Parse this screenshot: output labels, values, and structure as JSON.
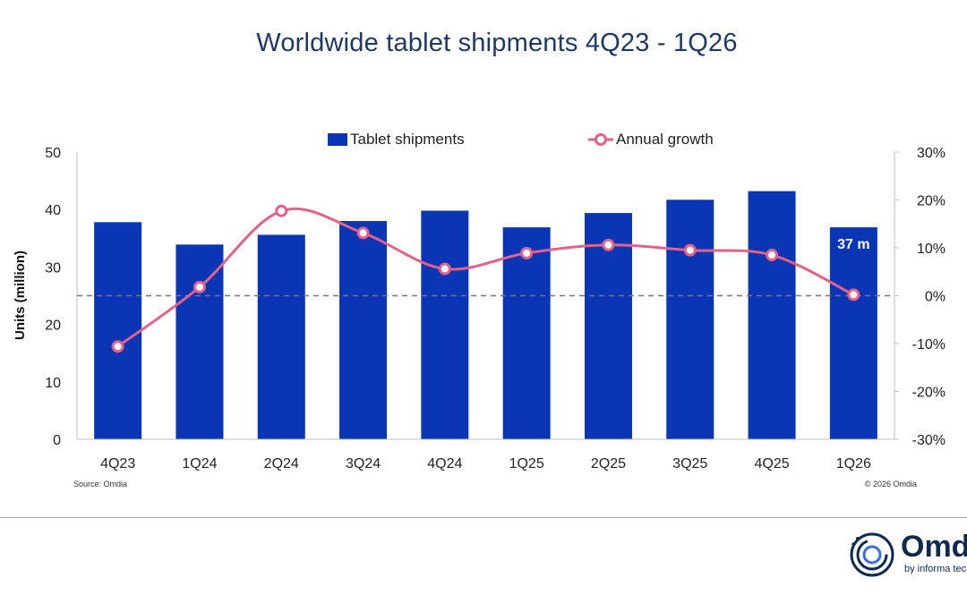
{
  "title": "Worldwide tablet shipments 4Q23 - 1Q26",
  "source": "Source: Omdia",
  "copyright": "© 2026 Omdia",
  "logo": {
    "wordmark": "Omdia",
    "byline": "by informa tech",
    "icon": "omdia-ring-logo-icon"
  },
  "colors": {
    "bars": "#0a35b5",
    "line": "#e2628a",
    "zero_line": "#777777"
  },
  "chart_data": {
    "type": "bar+line",
    "categories": [
      "4Q23",
      "1Q24",
      "2Q24",
      "3Q24",
      "4Q24",
      "1Q25",
      "2Q25",
      "3Q25",
      "4Q25",
      "1Q26"
    ],
    "series": [
      {
        "name": "Tablet shipments",
        "type": "bar",
        "axis": "left",
        "values": [
          37.8,
          33.9,
          35.6,
          38.0,
          39.8,
          36.9,
          39.4,
          41.7,
          43.2,
          36.9
        ]
      },
      {
        "name": "Annual growth",
        "type": "line",
        "axis": "right",
        "values": [
          -10.6,
          1.8,
          17.7,
          13.1,
          5.6,
          8.9,
          10.6,
          9.5,
          8.5,
          0.2
        ]
      }
    ],
    "ylabel": "Units (million)",
    "ylim": [
      0,
      50
    ],
    "yticks": [
      "0",
      "10",
      "20",
      "30",
      "40",
      "50"
    ],
    "y2lim": [
      -30,
      30
    ],
    "y2ticks": [
      "-30%",
      "-20%",
      "-10%",
      "0%",
      "10%",
      "20%",
      "30%"
    ],
    "annotation": {
      "category": "1Q26",
      "text": "37 m"
    },
    "legend": "top-center",
    "grid": false
  }
}
